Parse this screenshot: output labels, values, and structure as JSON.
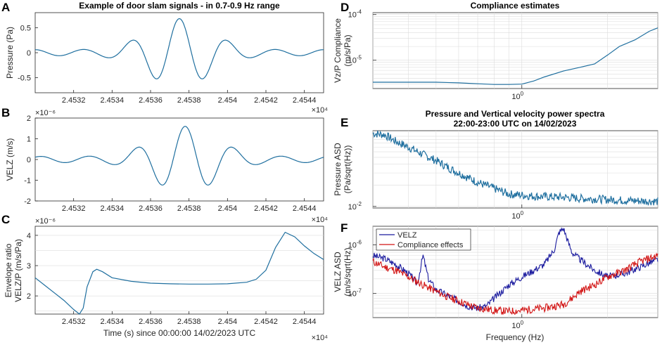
{
  "colors": {
    "signal": "#1f6f9f",
    "velz": "#1a1a9e",
    "compliance": "#d21414"
  },
  "chart_data": [
    {
      "id": "A",
      "type": "line",
      "title": "Example of door slam signals - in 0.7-0.9 Hz range",
      "ylabel": "Pressure (Pa)",
      "xlim": [
        2.453,
        2.4545
      ],
      "xticks": [
        "2.4532",
        "2.4534",
        "2.4536",
        "2.4538",
        "2.454",
        "2.4542",
        "2.4544"
      ],
      "yticks": [
        "-0.5",
        "0",
        "0.5"
      ],
      "ylim": [
        -0.8,
        0.8
      ],
      "xexp": "×10⁴",
      "wave": {
        "center": 2.45375,
        "period": 0.00025,
        "amplitude": 0.68,
        "width": 0.00045,
        "baseline_amp": 0.06
      }
    },
    {
      "id": "B",
      "type": "line",
      "ylabel": "VELZ (m/s)",
      "yexp": "×10⁻⁶",
      "xexp": "×10⁴",
      "xlim": [
        2.453,
        2.4545
      ],
      "ylim": [
        -2,
        2
      ],
      "xticks": [
        "2.4532",
        "2.4534",
        "2.4536",
        "2.4538",
        "2.454",
        "2.4542",
        "2.4544"
      ],
      "yticks": [
        "-2",
        "-1",
        "0",
        "1",
        "2"
      ],
      "wave": {
        "center": 2.45378,
        "period": 0.00025,
        "amplitude": 1.6,
        "width": 0.00045,
        "baseline_amp": 0.15
      }
    },
    {
      "id": "C",
      "type": "line",
      "ylabel": "Envelope ratio VELZ/P (m/s/Pa)",
      "ylabel_lines": [
        "Envelope ratio",
        "VELZ/P (m/s/Pa)"
      ],
      "yexp": "×10⁻⁶",
      "xexp": "×10⁴",
      "xlabel": "Time (s) since 00:00:00 14/02/2023 UTC",
      "xlim": [
        2.453,
        2.4545
      ],
      "ylim": [
        1.4,
        4.3
      ],
      "xticks": [
        "2.4532",
        "2.4534",
        "2.4536",
        "2.4538",
        "2.454",
        "2.4542",
        "2.4544"
      ],
      "yticks": [
        "2",
        "3",
        "4"
      ],
      "x": [
        2.453,
        2.45305,
        2.4531,
        2.45315,
        2.4532,
        2.45323,
        2.45325,
        2.45327,
        2.4533,
        2.45332,
        2.45335,
        2.4534,
        2.4535,
        2.4536,
        2.4537,
        2.4538,
        2.4539,
        2.454,
        2.4541,
        2.45415,
        2.4542,
        2.45425,
        2.4543,
        2.45435,
        2.4544,
        2.45445,
        2.4545
      ],
      "y": [
        2.6,
        2.35,
        2.1,
        1.85,
        1.55,
        1.4,
        1.6,
        2.3,
        2.8,
        2.88,
        2.8,
        2.6,
        2.48,
        2.42,
        2.4,
        2.39,
        2.39,
        2.4,
        2.45,
        2.55,
        2.85,
        3.6,
        4.1,
        3.95,
        3.65,
        3.4,
        3.2
      ]
    },
    {
      "id": "D",
      "type": "line",
      "title": "Compliance estimates",
      "ylabel": "Vz/P Compliance (m/s/Pa)",
      "ylabel_lines": [
        "Vz/P Compliance",
        "(m/s/Pa)"
      ],
      "xscale": "log",
      "yscale": "log",
      "xlim": [
        0.3,
        3.0
      ],
      "ylim": [
        2.4e-06,
        0.00011
      ],
      "xticks": [
        "10^0"
      ],
      "yticks": [
        "10^-5",
        "10^-4"
      ],
      "x": [
        0.3,
        0.4,
        0.5,
        0.6,
        0.7,
        0.8,
        0.9,
        1.0,
        1.1,
        1.2,
        1.4,
        1.6,
        1.8,
        2.0,
        2.2,
        2.5,
        2.8,
        3.0
      ],
      "y": [
        3.3e-06,
        3.3e-06,
        3.3e-06,
        3.2e-06,
        3.05e-06,
        2.95e-06,
        2.95e-06,
        3e-06,
        3.5e-06,
        4.3e-06,
        5.8e-06,
        7e-06,
        8.3e-06,
        1.3e-05,
        2e-05,
        2.8e-05,
        4.3e-05,
        5.1e-05
      ]
    },
    {
      "id": "E",
      "type": "line",
      "title": "Pressure and Vertical velocity power spectra",
      "subtitle": "22:00-23:00 UTC on 14/02/2023",
      "ylabel": "Pressure ASD (Pa/sqrt(Hz))",
      "ylabel_lines": [
        "Pressure ASD",
        "(Pa/sqrt(Hz))"
      ],
      "xscale": "log",
      "yscale": "log",
      "xlim": [
        0.3,
        3.0
      ],
      "ylim": [
        0.0095,
        0.12
      ],
      "xticks": [
        "10^0"
      ],
      "yticks": [
        "10^-2"
      ],
      "x": [
        0.3,
        0.33,
        0.36,
        0.4,
        0.45,
        0.5,
        0.55,
        0.6,
        0.7,
        0.8,
        0.9,
        1.0,
        1.1,
        1.2,
        1.4,
        1.6,
        1.8,
        2.0,
        2.3,
        2.6,
        3.0
      ],
      "y": [
        0.11,
        0.105,
        0.085,
        0.07,
        0.055,
        0.045,
        0.036,
        0.03,
        0.022,
        0.018,
        0.015,
        0.0145,
        0.014,
        0.0138,
        0.0135,
        0.013,
        0.0128,
        0.0125,
        0.0122,
        0.012,
        0.0118
      ]
    },
    {
      "id": "F",
      "type": "line",
      "ylabel": "VELZ ASD (m/s/sqrt(Hz)",
      "ylabel_lines": [
        "VELZ ASD",
        "(m/s/sqrt(Hz)"
      ],
      "xlabel": "Frequency (Hz)",
      "xscale": "log",
      "yscale": "log",
      "xlim": [
        0.3,
        3.0
      ],
      "ylim": [
        3.2e-08,
        2.4e-06
      ],
      "xticks": [
        "10^0"
      ],
      "yticks": [
        "10^-7",
        "10^-6"
      ],
      "legend": {
        "placement": "top-left",
        "entries": [
          "VELZ",
          "Compliance effects"
        ]
      },
      "series": [
        {
          "name": "VELZ",
          "x": [
            0.3,
            0.33,
            0.36,
            0.4,
            0.43,
            0.45,
            0.47,
            0.5,
            0.55,
            0.6,
            0.65,
            0.7,
            0.75,
            0.8,
            0.9,
            1.0,
            1.1,
            1.2,
            1.3,
            1.35,
            1.4,
            1.45,
            1.5,
            1.6,
            1.8,
            2.0,
            2.3,
            2.6,
            3.0
          ],
          "y": [
            6e-07,
            5.2e-07,
            4e-07,
            2.6e-07,
            1.6e-07,
            6e-07,
            2e-07,
            1.2e-07,
            9e-08,
            7e-08,
            5.5e-08,
            5e-08,
            5.5e-08,
            8e-08,
            1.5e-07,
            2.2e-07,
            3e-07,
            4e-07,
            8e-07,
            1.8e-06,
            2.2e-06,
            1.2e-06,
            7e-07,
            5e-07,
            3e-07,
            2.2e-07,
            2.6e-07,
            3.5e-07,
            5e-07
          ]
        },
        {
          "name": "Compliance effects",
          "x": [
            0.3,
            0.33,
            0.36,
            0.4,
            0.45,
            0.5,
            0.55,
            0.6,
            0.65,
            0.7,
            0.75,
            0.8,
            0.9,
            1.0,
            1.1,
            1.2,
            1.3,
            1.4,
            1.5,
            1.6,
            1.8,
            2.0,
            2.3,
            2.6,
            3.0
          ],
          "y": [
            4.5e-07,
            3.5e-07,
            3e-07,
            2.2e-07,
            1.5e-07,
            1.1e-07,
            8.5e-08,
            7e-08,
            5.8e-08,
            5e-08,
            4.8e-08,
            4.5e-08,
            4.3e-08,
            4.5e-08,
            4.8e-08,
            5e-08,
            5.5e-08,
            6e-08,
            8e-08,
            1.1e-07,
            1.5e-07,
            2.2e-07,
            3e-07,
            4.5e-07,
            6e-07
          ]
        }
      ]
    }
  ]
}
